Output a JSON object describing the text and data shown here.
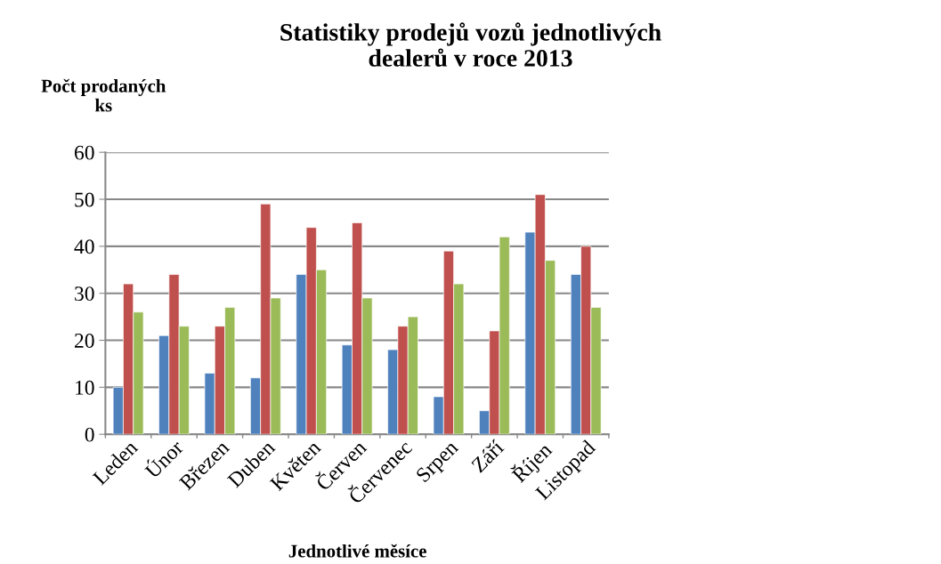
{
  "chart_data": {
    "type": "bar",
    "title": "Statistiky prodejů vozů jednotlivých\ndealerů v roce 2013",
    "ylabel": "Počt prodaných\nks",
    "xlabel": "Jednotlivé měsíce",
    "categories": [
      "Leden",
      "Únor",
      "Březen",
      "Duben",
      "Květen",
      "Červen",
      "Červenec",
      "Srpen",
      "Září",
      "Říjen",
      "Listopad"
    ],
    "series": [
      {
        "color": "#4f81bd",
        "values": [
          10,
          21,
          13,
          12,
          34,
          19,
          18,
          8,
          5,
          43,
          34
        ]
      },
      {
        "color": "#c0504d",
        "values": [
          32,
          34,
          23,
          49,
          44,
          45,
          23,
          39,
          22,
          51,
          40
        ]
      },
      {
        "color": "#9bbb59",
        "values": [
          26,
          23,
          27,
          29,
          35,
          29,
          25,
          32,
          42,
          37,
          27
        ]
      }
    ],
    "ylim": [
      0,
      60
    ],
    "yticks": [
      0,
      10,
      20,
      30,
      40,
      50,
      60
    ],
    "grid": "y"
  }
}
